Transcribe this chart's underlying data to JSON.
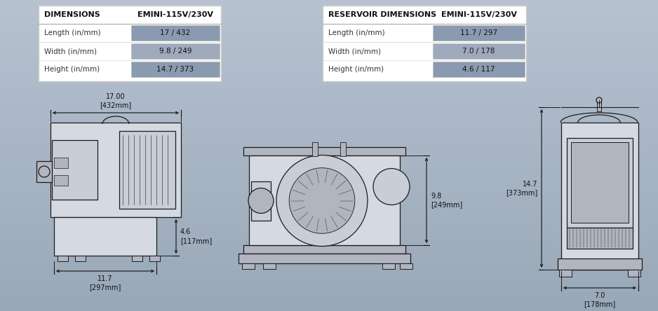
{
  "table1_header1": "DIMENSIONS",
  "table1_header2": "EMINI-115V/230V",
  "table1_rows": [
    [
      "Length (in/mm)",
      "17 / 432"
    ],
    [
      "Width (in/mm)",
      "9.8 / 249"
    ],
    [
      "Height (in/mm)",
      "14.7 / 373"
    ]
  ],
  "table2_header1": "RESERVOIR DIMENSIONS",
  "table2_header2": "EMINI-115V/230V",
  "table2_rows": [
    [
      "Length (in/mm)",
      "11.7 / 297"
    ],
    [
      "Width (in/mm)",
      "7.0 / 178"
    ],
    [
      "Height (in/mm)",
      "4.6 / 117"
    ]
  ],
  "cell_bg_dark": "#8a9ab0",
  "cell_bg_mid": "#9eaabb",
  "table_bg": "#ffffff",
  "bg_top": "#b8c2ce",
  "bg_bottom": "#7a8898",
  "draw_color": "#1c1c1c",
  "dim_color": "#111111",
  "body_fill": "#d4d9e2",
  "body_fill2": "#c8cdd8",
  "dark_fill": "#b0b5c0"
}
